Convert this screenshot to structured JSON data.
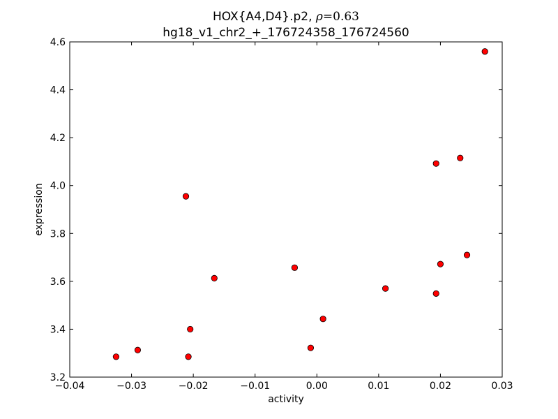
{
  "chart_data": {
    "type": "scatter",
    "title": {
      "prefix": "HOX{A4,D4}.p2, ",
      "rho_symbol": "ρ",
      "rho_value": "=0.63",
      "subtitle": "hg18_v1_chr2_+_176724358_176724560"
    },
    "xlabel": "activity",
    "ylabel": "expression",
    "xlim": [
      -0.04,
      0.03
    ],
    "ylim": [
      3.2,
      4.6
    ],
    "xticks": [
      -0.04,
      -0.03,
      -0.02,
      -0.01,
      0.0,
      0.01,
      0.02,
      0.03
    ],
    "xtick_labels": [
      "−0.04",
      "−0.03",
      "−0.02",
      "−0.01",
      "0.00",
      "0.01",
      "0.02",
      "0.03"
    ],
    "yticks": [
      3.2,
      3.4,
      3.6,
      3.8,
      4.0,
      4.2,
      4.4,
      4.6
    ],
    "ytick_labels": [
      "3.2",
      "3.4",
      "3.6",
      "3.8",
      "4.0",
      "4.2",
      "4.4",
      "4.6"
    ],
    "grid": false,
    "marker_color": "#ff0000",
    "points": [
      {
        "x": -0.0325,
        "y": 3.285
      },
      {
        "x": -0.029,
        "y": 3.313
      },
      {
        "x": -0.0212,
        "y": 3.955
      },
      {
        "x": -0.0208,
        "y": 3.285
      },
      {
        "x": -0.0205,
        "y": 3.4
      },
      {
        "x": -0.0166,
        "y": 3.613
      },
      {
        "x": -0.0036,
        "y": 3.657
      },
      {
        "x": -0.001,
        "y": 3.322
      },
      {
        "x": 0.001,
        "y": 3.443
      },
      {
        "x": 0.0111,
        "y": 3.57
      },
      {
        "x": 0.0193,
        "y": 4.092
      },
      {
        "x": 0.0193,
        "y": 3.549
      },
      {
        "x": 0.02,
        "y": 3.672
      },
      {
        "x": 0.0232,
        "y": 4.115
      },
      {
        "x": 0.0243,
        "y": 3.71
      },
      {
        "x": 0.0272,
        "y": 4.56
      }
    ]
  }
}
